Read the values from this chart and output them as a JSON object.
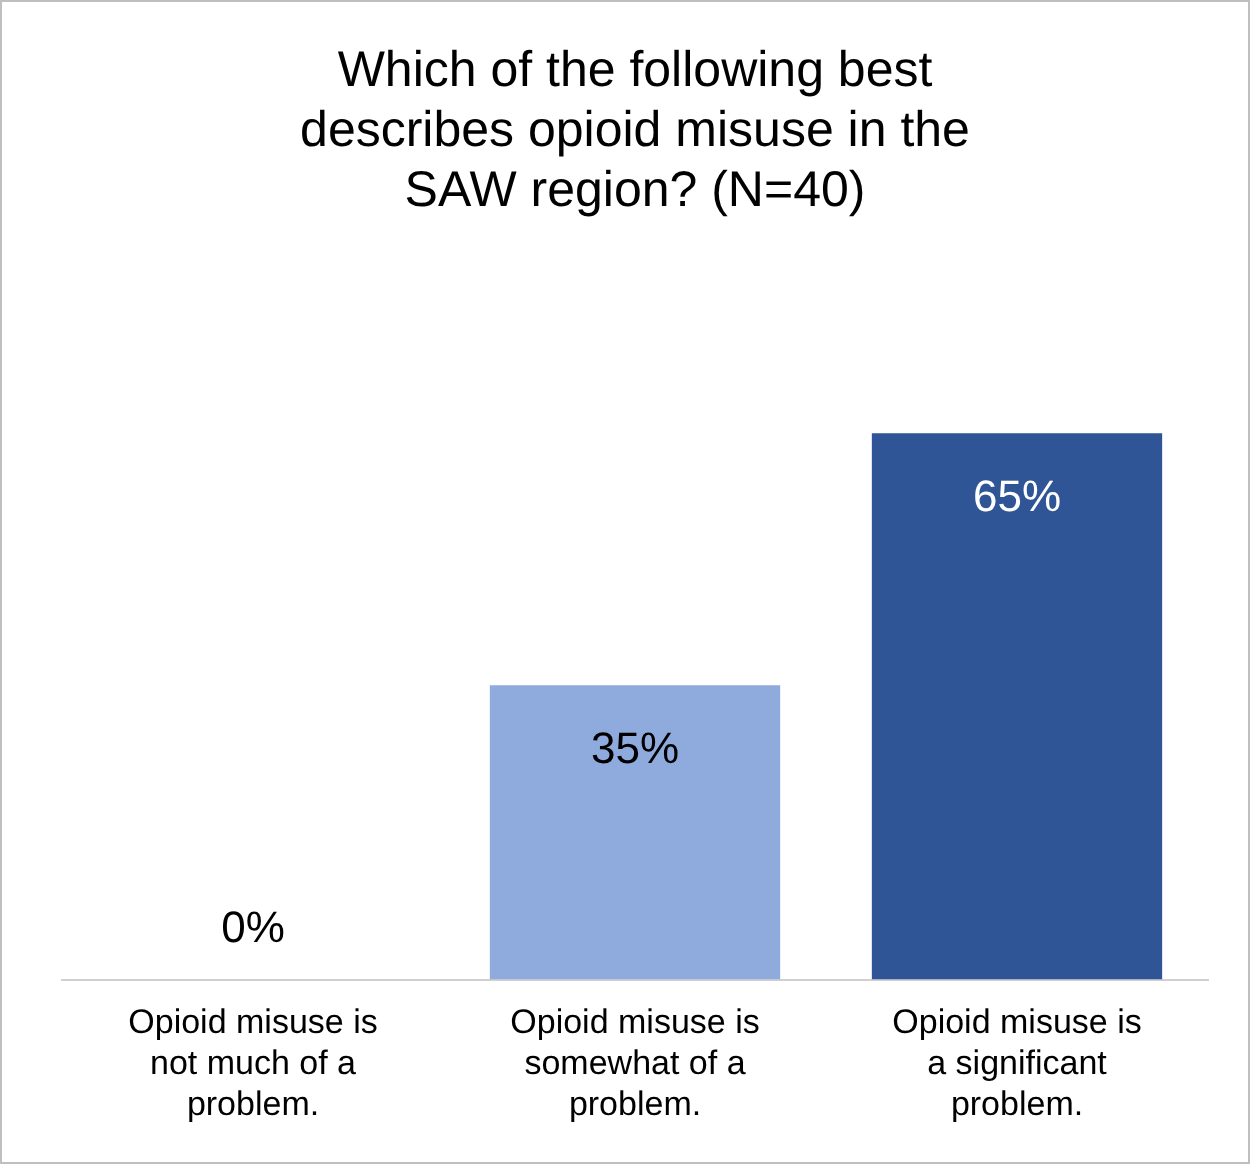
{
  "chart_data": {
    "type": "bar",
    "title": "Which of the following best describes opioid misuse in the SAW region? (N=40)",
    "categories": [
      "Opioid misuse is not much of a problem.",
      "Opioid misuse is somewhat of a problem.",
      "Opioid misuse is a significant problem."
    ],
    "values": [
      0,
      35,
      65
    ],
    "colors": [
      "#8faadc",
      "#8faadc",
      "#2f5597"
    ],
    "value_labels": [
      "0%",
      "35%",
      "65%"
    ],
    "grid": false,
    "legend": false
  }
}
